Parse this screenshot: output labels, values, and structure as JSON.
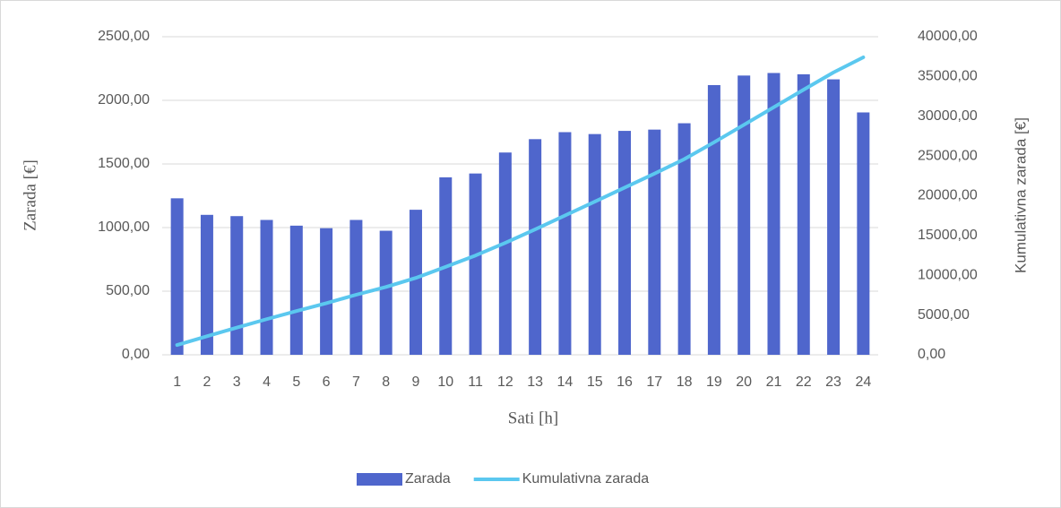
{
  "chart_data": {
    "type": "bar-line",
    "categories": [
      "1",
      "2",
      "3",
      "4",
      "5",
      "6",
      "7",
      "8",
      "9",
      "10",
      "11",
      "12",
      "13",
      "14",
      "15",
      "16",
      "17",
      "18",
      "19",
      "20",
      "21",
      "22",
      "23",
      "24"
    ],
    "series": [
      {
        "name": "Zarada",
        "color": "#4f66cc",
        "type": "bar",
        "values": [
          1230,
          1100,
          1090,
          1060,
          1015,
          995,
          1060,
          975,
          1140,
          1395,
          1425,
          1590,
          1695,
          1750,
          1735,
          1760,
          1770,
          1820,
          2120,
          2195,
          2215,
          2205,
          2165,
          1905
        ]
      },
      {
        "name": "Kumulativna zarada",
        "color": "#5bc8ef",
        "type": "line",
        "axis": "y2",
        "values": [
          1230,
          2330,
          3420,
          4480,
          5495,
          6490,
          7550,
          8525,
          9665,
          11060,
          12485,
          14075,
          15770,
          17520,
          19255,
          21015,
          22785,
          24605,
          26725,
          28920,
          31135,
          33340,
          35505,
          37410
        ]
      }
    ],
    "x_label": "Sati [h]",
    "y_label": "Zarada [€]",
    "y2_label": "Kumulativna zarada [€]",
    "ylim": [
      0,
      2500
    ],
    "yticks": [
      {
        "value": 0,
        "label": "0,00"
      },
      {
        "value": 500,
        "label": "500,00"
      },
      {
        "value": 1000,
        "label": "1000,00"
      },
      {
        "value": 1500,
        "label": "1500,00"
      },
      {
        "value": 2000,
        "label": "2000,00"
      },
      {
        "value": 2500,
        "label": "2500,00"
      }
    ],
    "y2lim": [
      0,
      40000
    ],
    "y2ticks": [
      {
        "value": 0,
        "label": "0,00"
      },
      {
        "value": 5000,
        "label": "5000,00"
      },
      {
        "value": 10000,
        "label": "10000,00"
      },
      {
        "value": 15000,
        "label": "15000,00"
      },
      {
        "value": 20000,
        "label": "20000,00"
      },
      {
        "value": 25000,
        "label": "25000,00"
      },
      {
        "value": 30000,
        "label": "30000,00"
      },
      {
        "value": 35000,
        "label": "35000,00"
      },
      {
        "value": 40000,
        "label": "40000,00"
      }
    ],
    "grid": true,
    "legend": "bottom"
  }
}
